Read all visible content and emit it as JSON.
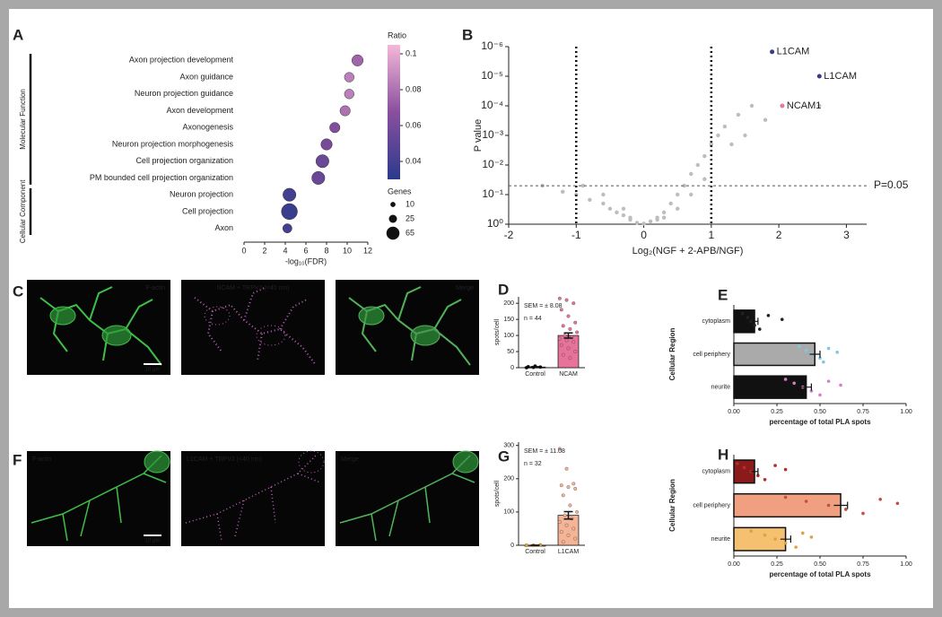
{
  "panels": [
    "A",
    "B",
    "C",
    "D",
    "E",
    "F",
    "G",
    "H"
  ],
  "images": [
    {
      "labels": [
        "F-actin",
        "NCAM + TRPV2 (<40 nm)",
        "Merge"
      ],
      "scale_bar": "10 µm"
    },
    {
      "labels": [
        "F-actin",
        "L1CAM + TRPV2 (<40 nm)",
        "Merge"
      ],
      "scale_bar": "10 µm"
    }
  ],
  "chart_data": [
    {
      "type": "dot",
      "xlabel": "-log₁₀(FDR)",
      "xlim": [
        0,
        12
      ],
      "xticks": [
        0,
        2,
        4,
        6,
        8,
        10,
        12
      ],
      "series": [
        {
          "name": "Molecular Function",
          "categories": [
            "Axon projection development",
            "Axon guidance",
            "Neuron projection guidance",
            "Axon development",
            "Axonogenesis",
            "Neuron projection morphogenesis",
            "Cell projection organization",
            "PM bounded cell projection organization"
          ],
          "values": [
            11,
            10.2,
            10.2,
            9.8,
            8.8,
            8,
            7.6,
            7.2
          ],
          "ratio": [
            0.075,
            0.085,
            0.085,
            0.08,
            0.065,
            0.06,
            0.055,
            0.055
          ],
          "genes": [
            30,
            22,
            22,
            25,
            25,
            30,
            40,
            40
          ]
        },
        {
          "name": "Cellular Component",
          "categories": [
            "Neuron projection",
            "Cell projection",
            "Axon"
          ],
          "values": [
            4.4,
            4.4,
            4.2
          ],
          "ratio": [
            0.04,
            0.035,
            0.04
          ],
          "genes": [
            40,
            60,
            20
          ]
        }
      ],
      "color_title": "Ratio",
      "color_lim": [
        0.03,
        0.105
      ],
      "color_ticks": [
        0.04,
        0.06,
        0.08,
        0.1
      ],
      "colors": [
        "#2b3a8c",
        "#8a4f9e",
        "#f4b8d8"
      ],
      "size_title": "Genes",
      "size_ticks": [
        10,
        25,
        65
      ]
    },
    {
      "type": "scatter",
      "xlabel": "Log₂(NGF + 2-APB/NGF)",
      "ylabel": "P value",
      "log_y": true,
      "xlim": [
        -2,
        3.3
      ],
      "ylim": [
        1,
        1e-06
      ],
      "xticks": [
        -2,
        -1,
        0,
        1,
        2,
        3
      ],
      "yticks": [
        {
          "value": 1,
          "label": "10⁰"
        },
        {
          "value": 0.1,
          "label": "10⁻¹"
        },
        {
          "value": 0.01,
          "label": "10⁻²"
        },
        {
          "value": 0.001,
          "label": "10⁻³"
        },
        {
          "value": 0.0001,
          "label": "10⁻⁴"
        },
        {
          "value": 1e-05,
          "label": "10⁻⁵"
        },
        {
          "value": 1e-06,
          "label": "10⁻⁶"
        }
      ],
      "x": [
        -1.5,
        -1.2,
        -1.0,
        -0.8,
        -0.6,
        -0.5,
        -0.4,
        -0.3,
        -0.2,
        -0.1,
        0,
        0.1,
        0.2,
        0.3,
        0.4,
        0.5,
        0.6,
        0.7,
        0.8,
        0.9,
        1.0,
        1.1,
        1.2,
        1.4,
        1.6,
        1.8,
        0.5,
        0.3,
        -0.3,
        -0.6,
        0.7,
        0.9,
        1.3,
        -0.9,
        0.2,
        -0.2,
        2.6,
        1.5
      ],
      "values": [
        0.05,
        0.08,
        0.1,
        0.15,
        0.2,
        0.3,
        0.4,
        0.5,
        0.7,
        0.9,
        0.95,
        0.8,
        0.6,
        0.4,
        0.2,
        0.1,
        0.05,
        0.02,
        0.01,
        0.005,
        0.002,
        0.001,
        0.0005,
        0.0002,
        0.0001,
        0.0003,
        0.3,
        0.6,
        0.3,
        0.1,
        0.1,
        0.03,
        0.002,
        0.05,
        0.7,
        0.6,
        0.0001,
        0.001
      ],
      "color": "#bdbdbd",
      "thresholds_x": [
        -1,
        1
      ],
      "threshold_y": {
        "value": 0.05,
        "label": "P=0.05"
      },
      "highlights": [
        {
          "name": "L1CAM",
          "x": 1.9,
          "value": 1.5e-06,
          "color": "#3a3a8c"
        },
        {
          "name": "L1CAM",
          "x": 2.6,
          "value": 1e-05,
          "color": "#3a3a8c"
        },
        {
          "name": "NCAM1",
          "x": 2.05,
          "value": 0.0001,
          "color": "#e07aa0"
        }
      ]
    },
    {
      "type": "bar",
      "ylabel": "spots/cell",
      "categories": [
        "Control",
        "NCAM"
      ],
      "values": [
        2,
        100
      ],
      "errors": [
        1,
        8
      ],
      "colors": [
        "#000000",
        "#e8739a"
      ],
      "ylim": [
        0,
        220
      ],
      "yticks": [
        0,
        50,
        100,
        150,
        200
      ],
      "points": [
        [
          0,
          1,
          2,
          3,
          5
        ],
        [
          215,
          210,
          200,
          180,
          160,
          140,
          130,
          120,
          110,
          100,
          95,
          90,
          85,
          80,
          70,
          60,
          50,
          40,
          30
        ]
      ],
      "annotations": [
        "SEM = ± 8.08",
        "n = 44"
      ]
    },
    {
      "type": "hbar",
      "ylabel": "Cellular Region",
      "xlabel": "percentage of total PLA spots",
      "categories": [
        "cytoplasm",
        "cell periphery",
        "neurite"
      ],
      "values": [
        0.12,
        0.47,
        0.42
      ],
      "errors": [
        0.02,
        0.03,
        0.03
      ],
      "colors": [
        "#111111",
        "#aaaaaa",
        "#111111"
      ],
      "point_colors": [
        "#222222",
        "#7ec8e3",
        "#d77fc0"
      ],
      "points": [
        [
          0.05,
          0.08,
          0.1,
          0.12,
          0.15,
          0.2,
          0.28
        ],
        [
          0.38,
          0.42,
          0.45,
          0.5,
          0.52,
          0.55,
          0.6
        ],
        [
          0.3,
          0.35,
          0.4,
          0.45,
          0.5,
          0.55,
          0.62
        ]
      ],
      "xlim": [
        0,
        1
      ],
      "xticks": [
        {
          "value": 0,
          "label": "0.00"
        },
        {
          "value": 0.25,
          "label": "0.25"
        },
        {
          "value": 0.5,
          "label": "0.50"
        },
        {
          "value": 0.75,
          "label": "0.75"
        },
        {
          "value": 1,
          "label": "1.00"
        }
      ]
    },
    {
      "type": "bar",
      "ylabel": "spots/cell",
      "categories": [
        "Control",
        "L1CAM"
      ],
      "values": [
        0,
        90
      ],
      "errors": [
        0.5,
        11
      ],
      "colors": [
        "#f0a030",
        "#f4b496"
      ],
      "ylim": [
        0,
        310
      ],
      "yticks": [
        0,
        100,
        200,
        300
      ],
      "points": [
        [
          0,
          0,
          1
        ],
        [
          290,
          230,
          185,
          180,
          175,
          170,
          150,
          120,
          100,
          90,
          80,
          70,
          60,
          50,
          40,
          30,
          20,
          10
        ]
      ],
      "annotations": [
        "SEM = ± 11.08",
        "n = 32"
      ]
    },
    {
      "type": "hbar",
      "ylabel": "Cellular Region",
      "xlabel": "percentage of total PLA spots",
      "categories": [
        "cytoplasm",
        "cell periphery",
        "neurite"
      ],
      "values": [
        0.12,
        0.62,
        0.3
      ],
      "errors": [
        0.02,
        0.04,
        0.03
      ],
      "colors": [
        "#8b1a1a",
        "#f0a080",
        "#f5c070"
      ],
      "point_colors": [
        "#b03030",
        "#c05040",
        "#e0a040"
      ],
      "points": [
        [
          0.02,
          0.06,
          0.1,
          0.14,
          0.18,
          0.24,
          0.3
        ],
        [
          0.3,
          0.42,
          0.55,
          0.65,
          0.75,
          0.85,
          0.95
        ],
        [
          0.1,
          0.18,
          0.24,
          0.3,
          0.36,
          0.4,
          0.45
        ]
      ],
      "xlim": [
        0,
        1
      ],
      "xticks": [
        {
          "value": 0,
          "label": "0.00"
        },
        {
          "value": 0.25,
          "label": "0.25"
        },
        {
          "value": 0.5,
          "label": "0.50"
        },
        {
          "value": 0.75,
          "label": "0.75"
        },
        {
          "value": 1,
          "label": "1.00"
        }
      ]
    }
  ]
}
